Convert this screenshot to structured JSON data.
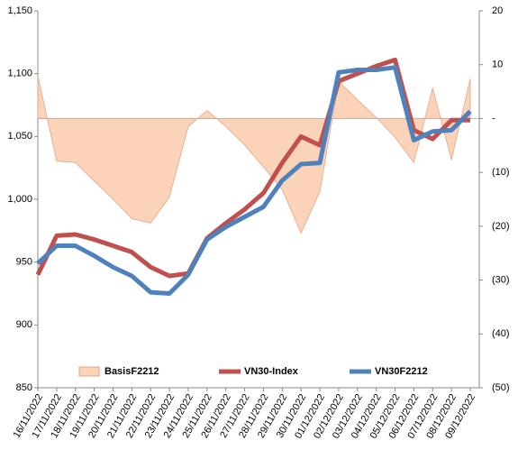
{
  "chart_data": {
    "type": "combo",
    "categories": [
      "16/11/2022",
      "17/11/2022",
      "18/11/2022",
      "19/11/2022",
      "20/11/2022",
      "21/11/2022",
      "22/11/2022",
      "23/11/2022",
      "24/11/2022",
      "25/11/2022",
      "26/11/2022",
      "27/11/2022",
      "28/11/2022",
      "29/11/2022",
      "30/11/2022",
      "01/12/2022",
      "02/12/2022",
      "03/12/2022",
      "04/12/2022",
      "05/12/2022",
      "06/12/2022",
      "07/12/2022",
      "08/12/2022",
      "09/12/2022"
    ],
    "series": [
      {
        "name": "BasisF2212",
        "type": "area",
        "axis": "y2",
        "color": "#fbd3b8",
        "values": [
          8,
          -7.9,
          -8.2,
          -11.6,
          -15,
          -18.6,
          -19.4,
          -14.6,
          -1.5,
          1.5,
          -1.5,
          -4.9,
          -9,
          -13.2,
          -21.3,
          -13.6,
          6.9,
          3.5,
          0.2,
          -3.5,
          -8.2,
          5.7,
          -7.7,
          7.4
        ]
      },
      {
        "name": "VN30-Index",
        "type": "line",
        "color": "#c0504d",
        "values": [
          940,
          971,
          972,
          968,
          963,
          958,
          946,
          939,
          941,
          969,
          981,
          992,
          1005,
          1029,
          1050,
          1043,
          1094,
          1100,
          1106,
          1111,
          1055,
          1048,
          1063,
          1063
        ]
      },
      {
        "name": "VN30F2212",
        "type": "line",
        "color": "#4f81bd",
        "values": [
          949,
          963,
          963,
          955,
          946,
          939,
          926,
          925,
          940,
          968,
          978,
          986,
          994,
          1015,
          1028,
          1029,
          1101,
          1103,
          1103,
          1105,
          1047,
          1054,
          1055,
          1070
        ]
      }
    ],
    "ylim": [
      850,
      1150
    ],
    "yticks": [
      850,
      900,
      950,
      {
        "value": 1000,
        "label": "1,000"
      },
      {
        "value": 1050,
        "label": "1,050"
      },
      {
        "value": 1100,
        "label": "1,100"
      },
      {
        "value": 1150,
        "label": "1,150"
      }
    ],
    "y2lim": [
      -50,
      20
    ],
    "y2ticks": [
      {
        "value": -50,
        "label": "(50)"
      },
      {
        "value": -40,
        "label": "(40)"
      },
      {
        "value": -30,
        "label": "(30)"
      },
      {
        "value": -20,
        "label": "(20)"
      },
      {
        "value": -10,
        "label": "(10)"
      },
      {
        "value": 0,
        "label": "-"
      },
      10,
      20
    ],
    "legend": "bottom"
  }
}
